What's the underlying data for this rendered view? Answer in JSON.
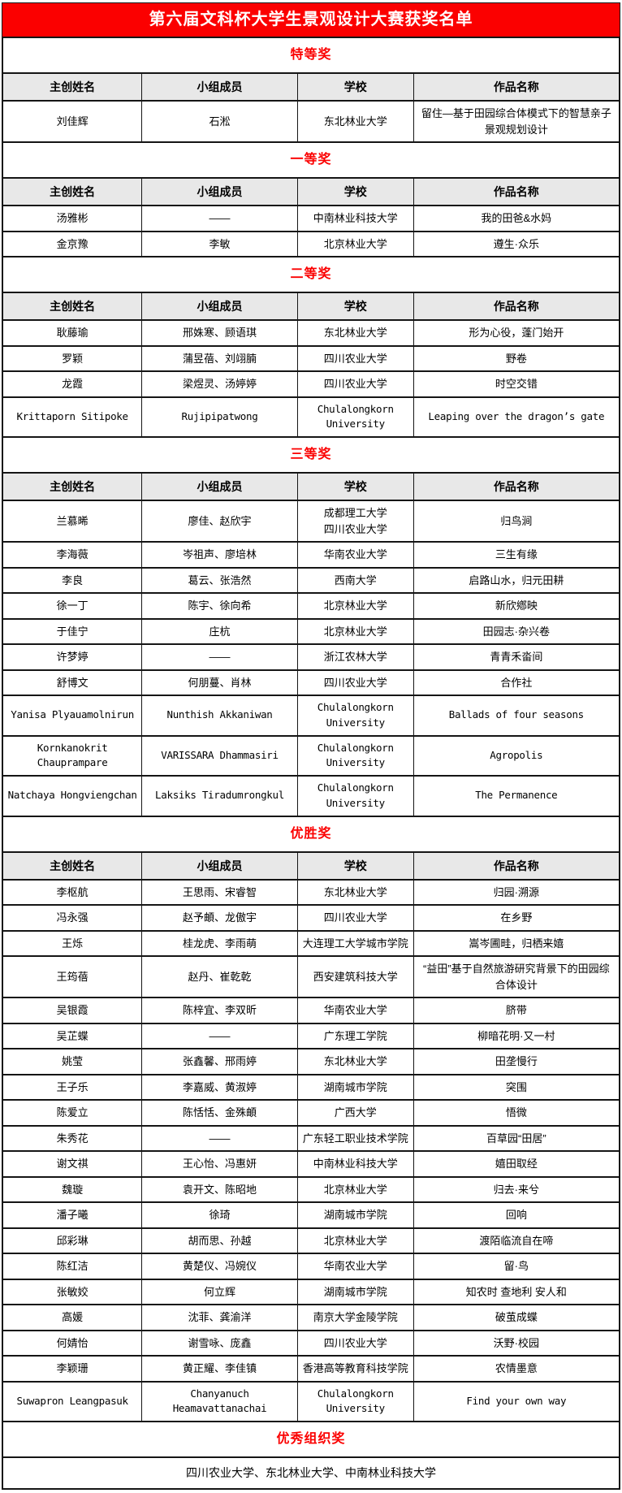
{
  "page_title": "第六届文科杯大学生景观设计大赛获奖名单",
  "columns": [
    "主创姓名",
    "小组成员",
    "学校",
    "作品名称"
  ],
  "colors": {
    "accent_red": "#fb0000",
    "header_bg": "#e8e8e8",
    "border": "#151515",
    "title_text": "#ffffff"
  },
  "sections": [
    {
      "label": "特等奖",
      "rows": [
        {
          "name": "刘佳辉",
          "members": "石淞",
          "school": "东北林业大学",
          "work": "留住—基于田园综合体模式下的智慧亲子景观规划设计"
        }
      ]
    },
    {
      "label": "一等奖",
      "rows": [
        {
          "name": "汤雅彬",
          "members": "——",
          "school": "中南林业科技大学",
          "work": "我的田爸&水妈"
        },
        {
          "name": "金京豫",
          "members": "李敏",
          "school": "北京林业大学",
          "work": "遵生·众乐"
        }
      ]
    },
    {
      "label": "二等奖",
      "rows": [
        {
          "name": "耿藤瑜",
          "members": "邢姝寒、顾语琪",
          "school": "东北林业大学",
          "work": "形为心役，蓬门始开"
        },
        {
          "name": "罗颖",
          "members": "蒲昱蓓、刘翊腩",
          "school": "四川农业大学",
          "work": "野卷"
        },
        {
          "name": "龙霞",
          "members": "梁煜灵、汤婷婷",
          "school": "四川农业大学",
          "work": "时空交错"
        },
        {
          "name": "Krittaporn Sitipoke",
          "members": "Rujipipatwong",
          "school": "Chulalongkorn University",
          "work": "Leaping over the dragon’s gate"
        }
      ]
    },
    {
      "label": "三等奖",
      "rows": [
        {
          "name": "兰慕晞",
          "members": "廖佳、赵欣宇",
          "school": "成都理工大学\n四川农业大学",
          "work": "归鸟涧"
        },
        {
          "name": "李海薇",
          "members": "岑祖声、廖培林",
          "school": "华南农业大学",
          "work": "三生有缘"
        },
        {
          "name": "李良",
          "members": "葛云、张浩然",
          "school": "西南大学",
          "work": "启路山水，归元田耕"
        },
        {
          "name": "徐一丁",
          "members": "陈宇、徐向希",
          "school": "北京林业大学",
          "work": "新欣鄕映"
        },
        {
          "name": "于佳宁",
          "members": "庄杭",
          "school": "北京林业大学",
          "work": "田园志·杂兴卷"
        },
        {
          "name": "许梦婷",
          "members": "——",
          "school": "浙江农林大学",
          "work": "青青禾畓间"
        },
        {
          "name": "舒博文",
          "members": "何朋蔓、肖林",
          "school": "四川农业大学",
          "work": "合作社"
        },
        {
          "name": "Yanisa Plyauamolnirun",
          "members": "Nunthish Akkaniwan",
          "school": "Chulalongkorn University",
          "work": "Ballads of four seasons"
        },
        {
          "name": "Kornkanokrit Chauprampare",
          "members": "VARISSARA Dhammasiri",
          "school": "Chulalongkorn University",
          "work": "Agropolis"
        },
        {
          "name": "Natchaya Hongviengchan",
          "members": "Laksiks Tiradumrongkul",
          "school": "Chulalongkorn University",
          "work": "The Permanence"
        }
      ]
    },
    {
      "label": "优胜奖",
      "rows": [
        {
          "name": "李枢航",
          "members": "王思雨、宋睿智",
          "school": "东北林业大学",
          "work": "归园·溯源"
        },
        {
          "name": "冯永强",
          "members": "赵予頔、龙傲宇",
          "school": "四川农业大学",
          "work": "在乡野"
        },
        {
          "name": "王烁",
          "members": "桂龙虎、李雨萌",
          "school": "大连理工大学城市学院",
          "work": "嵩岑圃畦，归栖来嬉"
        },
        {
          "name": "王筠蓓",
          "members": "赵丹、崔乾乾",
          "school": "西安建筑科技大学",
          "work": "“益田”基于自然旅游研究背景下的田园综合体设计"
        },
        {
          "name": "吴银霞",
          "members": "陈梓宜、李双昕",
          "school": "华南农业大学",
          "work": "脐带"
        },
        {
          "name": "吴芷蝶",
          "members": "——",
          "school": "广东理工学院",
          "work": "柳暗花明·又一村"
        },
        {
          "name": "姚莹",
          "members": "张鑫馨、邢雨婷",
          "school": "东北林业大学",
          "work": "田垄慢行"
        },
        {
          "name": "王子乐",
          "members": "李嘉威、黄淑婷",
          "school": "湖南城市学院",
          "work": "突围"
        },
        {
          "name": "陈爱立",
          "members": "陈恬恬、金殊頔",
          "school": "广西大学",
          "work": "悟微"
        },
        {
          "name": "朱秀花",
          "members": "——",
          "school": "广东轻工职业技术学院",
          "work": "百草园“田居”"
        },
        {
          "name": "谢文祺",
          "members": "王心怡、冯惠妍",
          "school": "中南林业科技大学",
          "work": "嬉田取经"
        },
        {
          "name": "魏璇",
          "members": "袁开文、陈昭地",
          "school": "北京林业大学",
          "work": "归去·来兮"
        },
        {
          "name": "潘子曦",
          "members": "徐琦",
          "school": "湖南城市学院",
          "work": "回响"
        },
        {
          "name": "邱彩琳",
          "members": "胡而思、孙越",
          "school": "北京林业大学",
          "work": "渡陌临流自在啼"
        },
        {
          "name": "陈红洁",
          "members": "黄楚仪、冯婉仪",
          "school": "华南农业大学",
          "work": "留·鸟"
        },
        {
          "name": "张敏姣",
          "members": "何立辉",
          "school": "湖南城市学院",
          "work": "知农时 查地利 安人和"
        },
        {
          "name": "高媛",
          "members": "沈菲、龚渝洋",
          "school": "南京大学金陵学院",
          "work": "破茧成蝶"
        },
        {
          "name": "何婧怡",
          "members": "谢雪咏、庞鑫",
          "school": "四川农业大学",
          "work": "沃野·校园"
        },
        {
          "name": "李颖珊",
          "members": "黄正耀、李佳镇",
          "school": "香港高等教育科技学院",
          "work": "农情墨意"
        },
        {
          "name": "Suwapron Leangpasuk",
          "members": "Chanyanuch Heamavattanachai",
          "school": "Chulalongkorn University",
          "work": "Find your own way"
        }
      ]
    }
  ],
  "org_award": {
    "label": "优秀组织奖",
    "winners": "四川农业大学、东北林业大学、中南林业科技大学"
  }
}
